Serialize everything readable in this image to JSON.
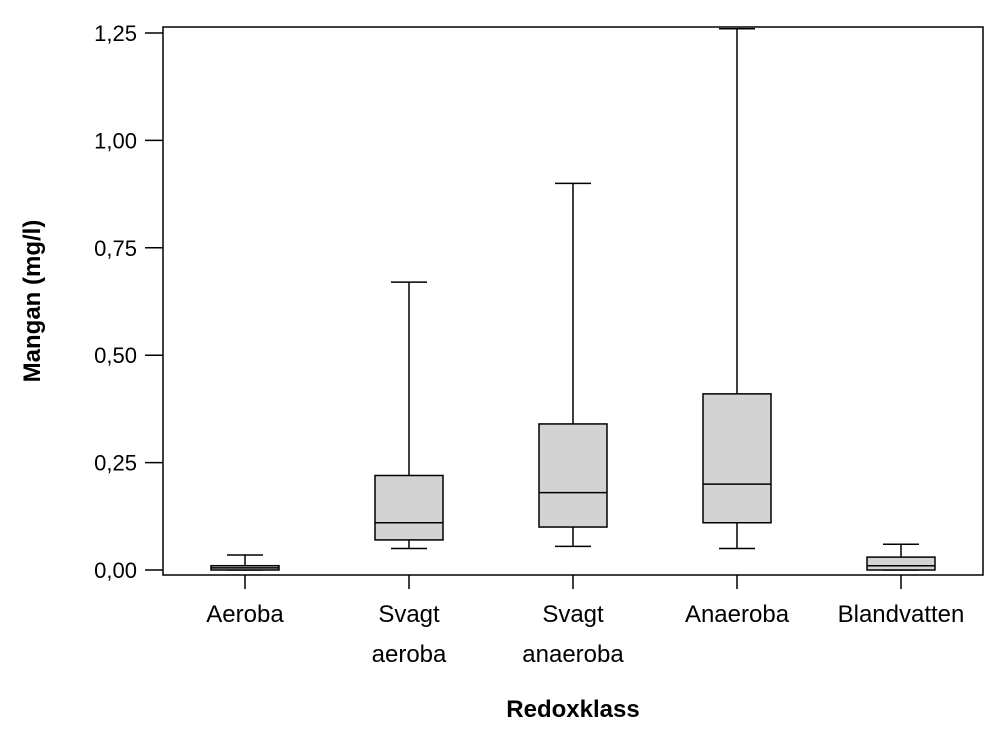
{
  "chart_data": {
    "type": "boxplot",
    "xlabel": "Redoxklass",
    "ylabel": "Mangan (mg/l)",
    "ylim": [
      0,
      1.25
    ],
    "yticks": [
      "0,00",
      "0,25",
      "0,50",
      "0,75",
      "1,00",
      "1,25"
    ],
    "ytick_values": [
      0,
      0.25,
      0.5,
      0.75,
      1.0,
      1.25
    ],
    "grid": false,
    "box_fill": "#d3d3d3",
    "line_color": "#000000",
    "categories": [
      {
        "label_lines": [
          "Aeroba"
        ],
        "whisker_low": 0.0,
        "q1": 0.0,
        "median": 0.005,
        "q3": 0.01,
        "whisker_high": 0.035
      },
      {
        "label_lines": [
          "Svagt",
          "aeroba"
        ],
        "whisker_low": 0.05,
        "q1": 0.07,
        "median": 0.11,
        "q3": 0.22,
        "whisker_high": 0.67
      },
      {
        "label_lines": [
          "Svagt",
          "anaeroba"
        ],
        "whisker_low": 0.055,
        "q1": 0.1,
        "median": 0.18,
        "q3": 0.34,
        "whisker_high": 0.9
      },
      {
        "label_lines": [
          "Anaeroba"
        ],
        "whisker_low": 0.05,
        "q1": 0.11,
        "median": 0.2,
        "q3": 0.41,
        "whisker_high": 1.26
      },
      {
        "label_lines": [
          "Blandvatten"
        ],
        "whisker_low": 0.0,
        "q1": 0.0,
        "median": 0.01,
        "q3": 0.03,
        "whisker_high": 0.06
      }
    ]
  }
}
